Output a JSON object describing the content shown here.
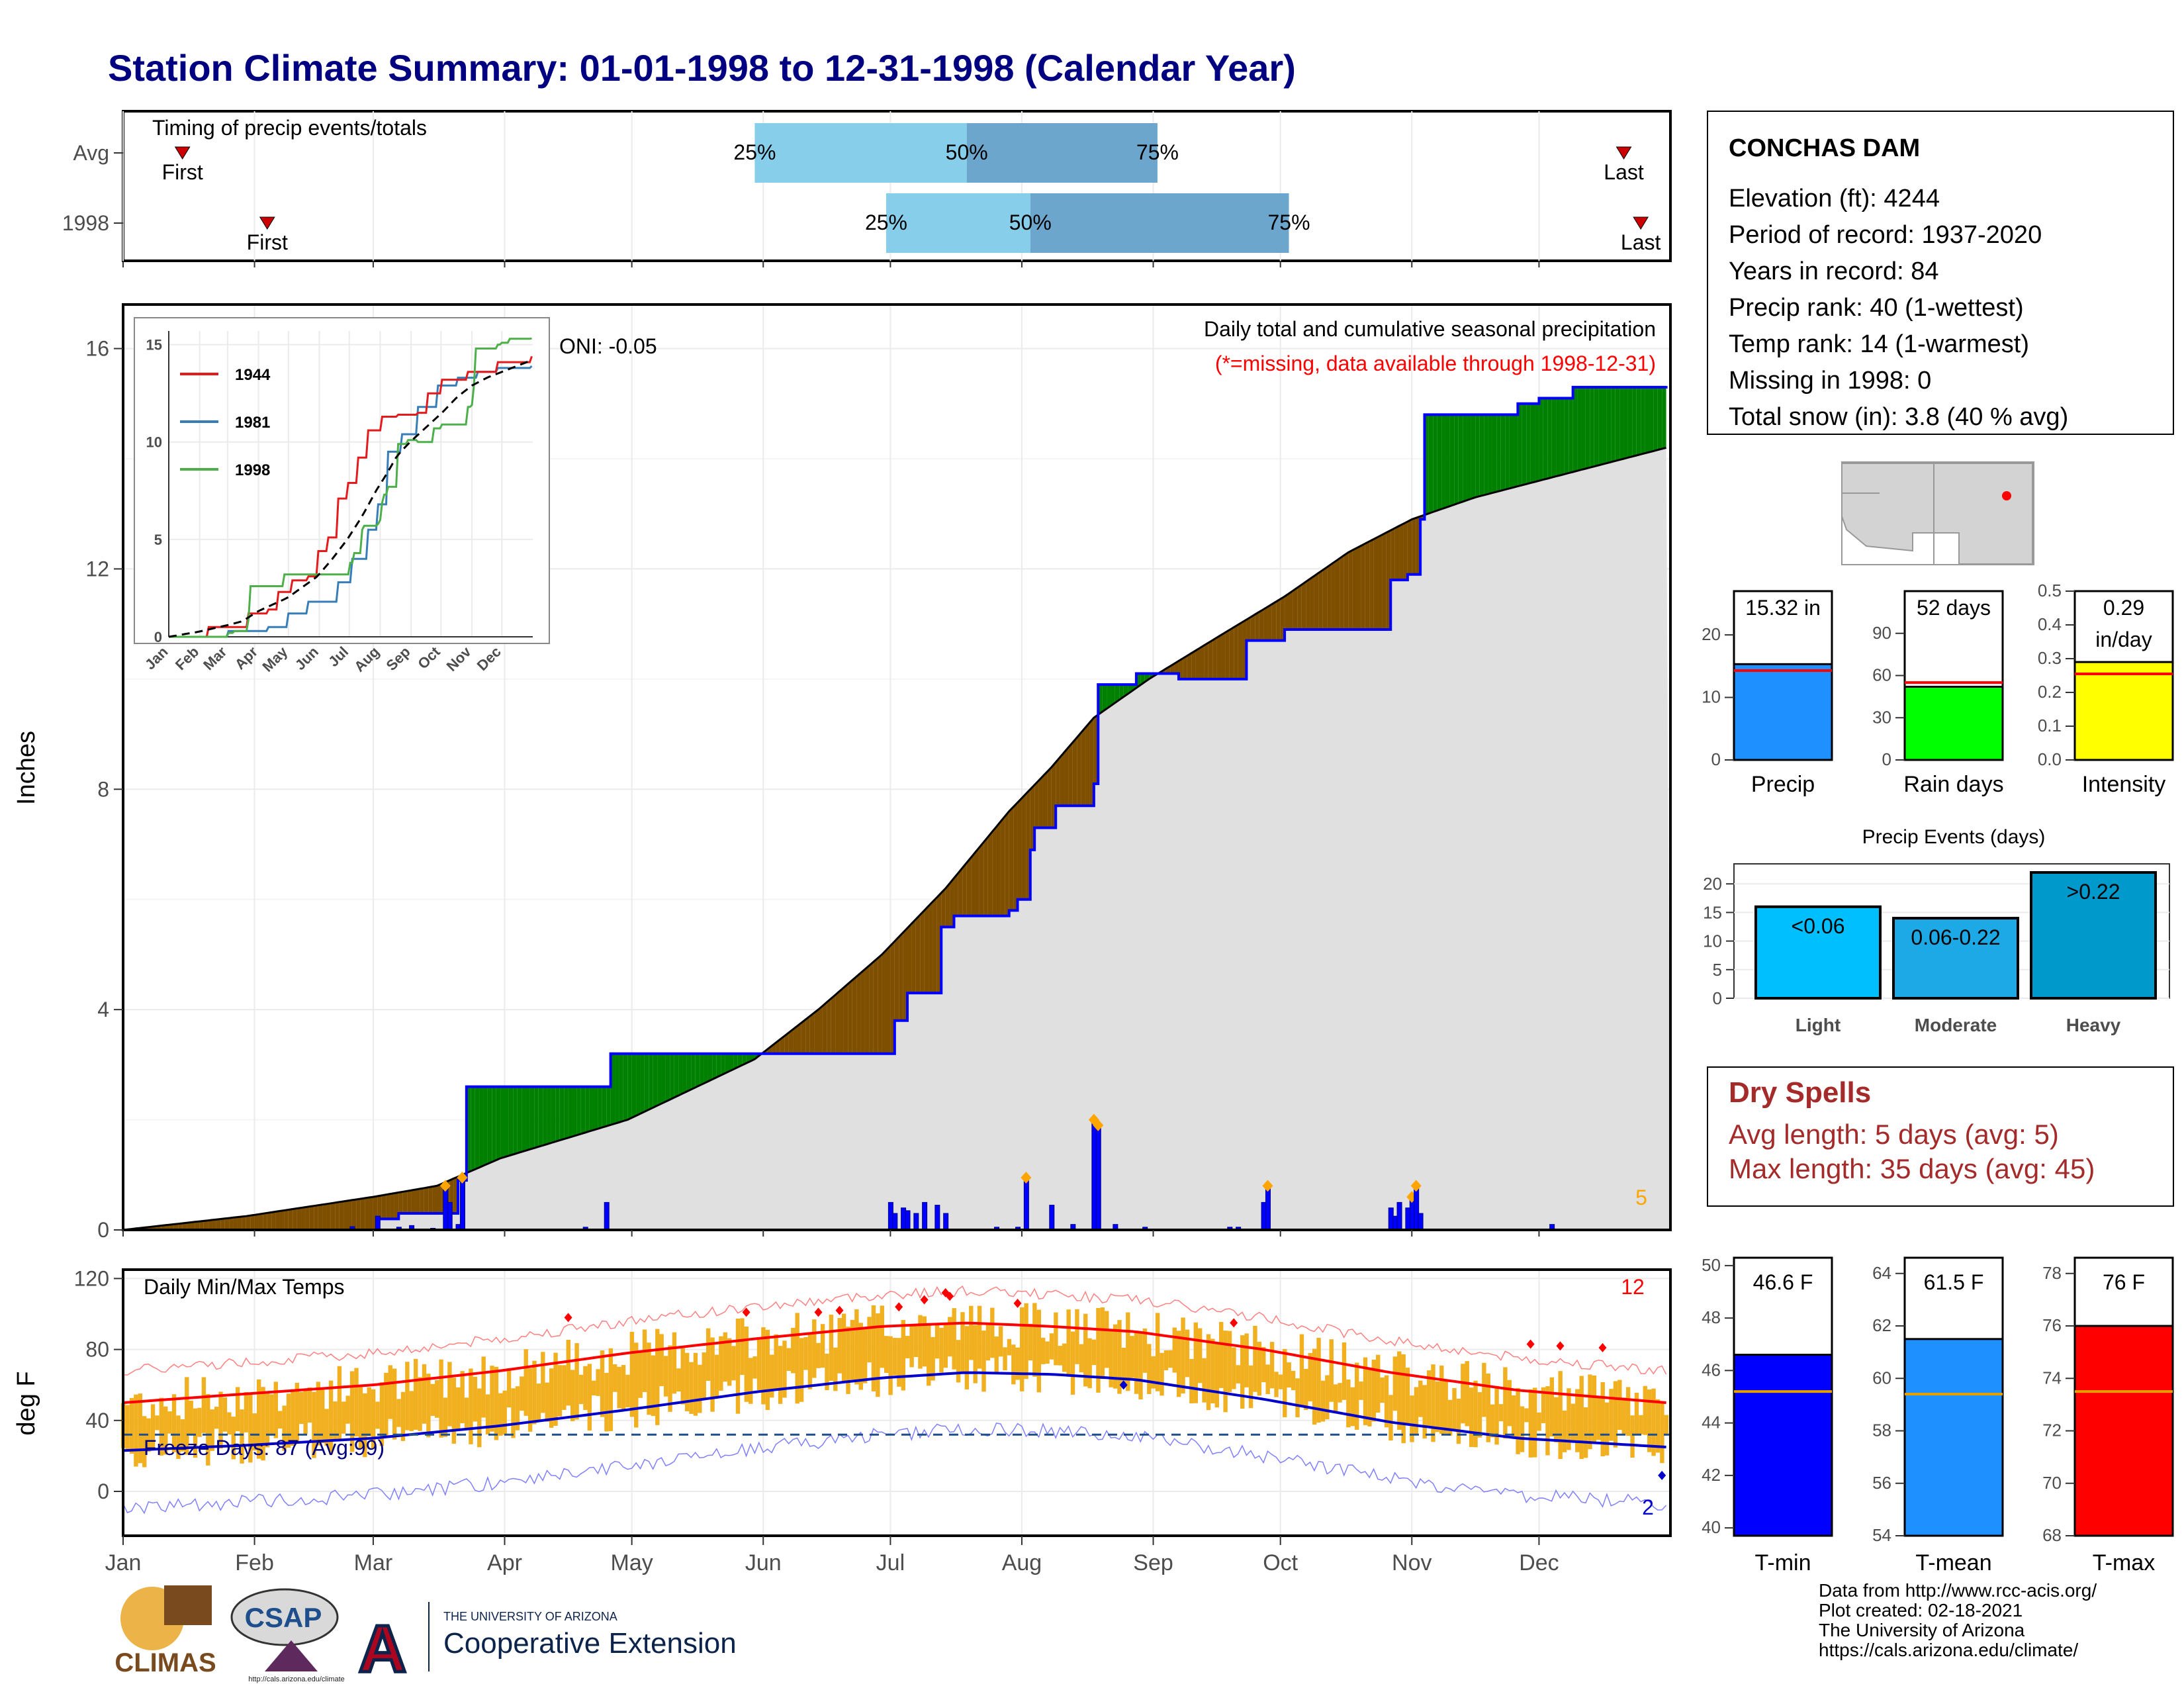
{
  "title": "Station Climate Summary: 01-01-1998 to 12-31-1998 (Calendar Year)",
  "colors": {
    "title": "#000080",
    "quartile_light": "#87CEEB",
    "quartile_dark": "#6CA6CD",
    "surplus": "#008000",
    "deficit": "#7F4F00",
    "normal_area": "#E0E0E0",
    "cumulative_line": "#0000FF",
    "daily_bars": "#0000FF",
    "temp_range": "#F0B020",
    "tmax_avg": "#FF0000",
    "tmin_avg": "#0000CD",
    "dry_spells": "#A52A2A",
    "missing_note": "#FF0000"
  },
  "timing": {
    "panel_title": "Timing of precip events/totals",
    "rows": [
      {
        "label": "Avg",
        "first_label": "First",
        "last_label": "Last",
        "first_doy": 15,
        "last_doy": 355,
        "q25": 150,
        "q50": 200,
        "q75": 245,
        "q25_label": "25%",
        "q50_label": "50%",
        "q75_label": "75%"
      },
      {
        "label": "1998",
        "first_label": "First",
        "last_label": "Last",
        "first_doy": 35,
        "last_doy": 359,
        "q25": 181,
        "q50": 215,
        "q75": 276,
        "q25_label": "25%",
        "q50_label": "50%",
        "q75_label": "75%"
      }
    ]
  },
  "precip_panel": {
    "ylabel": "Inches",
    "yticks": [
      "0",
      "4",
      "8",
      "12",
      "16"
    ],
    "oni": "ONI: -0.05",
    "caption": "Daily total and cumulative seasonal precipitation",
    "missing_note": "(*=missing, data available through 1998-12-31)",
    "missing_count": "5"
  },
  "inset": {
    "yticks": [
      "0",
      "5",
      "10",
      "15"
    ],
    "xticks": [
      "Jan",
      "Feb",
      "Mar",
      "Apr",
      "May",
      "Jun",
      "Jul",
      "Aug",
      "Sep",
      "Oct",
      "Nov",
      "Dec"
    ],
    "legend": [
      {
        "name": "1944",
        "color": "#E41A1C"
      },
      {
        "name": "1981",
        "color": "#377EB8"
      },
      {
        "name": "1998",
        "color": "#4DAF4A"
      }
    ]
  },
  "temp_panel": {
    "ylabel": "deg F",
    "title": "Daily Min/Max Temps",
    "freeze_label": "Freeze Days: 87 (Avg:99)",
    "yticks": [
      "0",
      "40",
      "80",
      "120"
    ],
    "count_max": "12",
    "count_min": "2"
  },
  "x_months": [
    "Jan",
    "Feb",
    "Mar",
    "Apr",
    "May",
    "Jun",
    "Jul",
    "Aug",
    "Sep",
    "Oct",
    "Nov",
    "Dec"
  ],
  "station": {
    "name": "CONCHAS DAM",
    "lines": [
      "Elevation (ft): 4244",
      "Period of record: 1937-2020",
      "Years in record: 84",
      "Precip rank: 40 (1-wettest)",
      "Temp rank: 14 (1-warmest)",
      "Missing in 1998: 0",
      "Total snow (in): 3.8 (40 % avg)"
    ]
  },
  "summary_bars": [
    {
      "label": "Precip",
      "value_label": "15.32 in",
      "value": 15.32,
      "avg": 14.3,
      "ymax": 27,
      "ticks": [
        "0",
        "10",
        "20"
      ],
      "tickvals": [
        0,
        10,
        20
      ],
      "color": "#1E90FF"
    },
    {
      "label": "Rain days",
      "value_label": "52 days",
      "value": 52,
      "avg": 55,
      "ymax": 120,
      "ticks": [
        "0",
        "30",
        "60",
        "90"
      ],
      "tickvals": [
        0,
        30,
        60,
        90
      ],
      "color": "#00FF00"
    },
    {
      "label": "Intensity",
      "value_label": "0.29",
      "value_label2": "in/day",
      "value": 0.29,
      "avg": 0.255,
      "ymax": 0.5,
      "ticks": [
        "0.0",
        "0.1",
        "0.2",
        "0.3",
        "0.4",
        "0.5"
      ],
      "tickvals": [
        0,
        0.1,
        0.2,
        0.3,
        0.4,
        0.5
      ],
      "color": "#FFFF00"
    }
  ],
  "precip_events": {
    "title": "Precip Events (days)",
    "yticks": [
      "0",
      "5",
      "10",
      "15",
      "20"
    ],
    "bars": [
      {
        "category": "Light",
        "label": "<0.06",
        "value": 16,
        "color": "#00BFFF"
      },
      {
        "category": "Moderate",
        "label": "0.06-0.22",
        "value": 14,
        "color": "#1CA9E6"
      },
      {
        "category": "Heavy",
        "label": ">0.22",
        "value": 22,
        "color": "#0099CC"
      }
    ]
  },
  "dry_spells": {
    "title": "Dry Spells",
    "avg_line": "Avg length: 5 days (avg: 5)",
    "max_line": "Max length: 35 days (avg: 45)"
  },
  "temp_bars": [
    {
      "label": "T-min",
      "value_label": "46.6 F",
      "value": 46.6,
      "avg": 45.2,
      "ymin": 39.7,
      "ymax": 50.3,
      "ticks": [
        "40",
        "42",
        "44",
        "46",
        "48",
        "50"
      ],
      "tickvals": [
        40,
        42,
        44,
        46,
        48,
        50
      ],
      "color": "#0000FF"
    },
    {
      "label": "T-mean",
      "value_label": "61.5 F",
      "value": 61.5,
      "avg": 59.4,
      "ymin": 54,
      "ymax": 64.6,
      "ticks": [
        "54",
        "56",
        "58",
        "60",
        "62",
        "64"
      ],
      "tickvals": [
        54,
        56,
        58,
        60,
        62,
        64
      ],
      "color": "#1E90FF"
    },
    {
      "label": "T-max",
      "value_label": "76 F",
      "value": 76.0,
      "avg": 73.5,
      "ymin": 68,
      "ymax": 78.6,
      "ticks": [
        "68",
        "70",
        "72",
        "74",
        "76",
        "78"
      ],
      "tickvals": [
        68,
        70,
        72,
        74,
        76,
        78
      ],
      "color": "#FF0000"
    }
  ],
  "logos": {
    "climas": "CLIMAS",
    "csap": "CSAP",
    "csap_url": "http://cals.arizona.edu/climate",
    "ua_small": "THE UNIVERSITY OF ARIZONA",
    "ua_big": "Cooperative Extension"
  },
  "credits": [
    "Data from http://www.rcc-acis.org/",
    "Plot created: 02-18-2021",
    "The University of Arizona",
    "https://cals.arizona.edu/climate/"
  ],
  "chart_data": {
    "type": "area",
    "title": "Station Climate Summary: 01-01-1998 to 12-31-1998 (Calendar Year)",
    "ylabel": "Inches",
    "ylim": [
      0,
      16.8
    ],
    "cumulative_1998": [
      [
        1,
        0
      ],
      [
        50,
        0
      ],
      [
        61,
        0.2
      ],
      [
        66,
        0.3
      ],
      [
        75,
        0.3
      ],
      [
        80,
        0.9
      ],
      [
        82,
        2.6
      ],
      [
        115,
        2.6
      ],
      [
        116,
        3.2
      ],
      [
        152,
        3.2
      ],
      [
        182,
        3.2
      ],
      [
        183,
        3.8
      ],
      [
        186,
        4.3
      ],
      [
        194,
        5.5
      ],
      [
        197,
        5.7
      ],
      [
        210,
        5.8
      ],
      [
        212,
        6.0
      ],
      [
        215,
        6.9
      ],
      [
        216,
        7.3
      ],
      [
        221,
        7.7
      ],
      [
        230,
        8.1
      ],
      [
        231,
        9.9
      ],
      [
        240,
        10.1
      ],
      [
        243,
        10.1
      ],
      [
        250,
        10.0
      ],
      [
        260,
        10.0
      ],
      [
        266,
        10.7
      ],
      [
        275,
        10.9
      ],
      [
        300,
        11.8
      ],
      [
        304,
        11.9
      ],
      [
        307,
        12.9
      ],
      [
        308,
        14.8
      ],
      [
        330,
        15.0
      ],
      [
        335,
        15.1
      ],
      [
        343,
        15.3
      ],
      [
        365,
        15.32
      ]
    ],
    "cumulative_avg": [
      [
        1,
        0
      ],
      [
        30,
        0.25
      ],
      [
        60,
        0.6
      ],
      [
        75,
        0.8
      ],
      [
        90,
        1.3
      ],
      [
        120,
        2.0
      ],
      [
        150,
        3.1
      ],
      [
        165,
        4.0
      ],
      [
        180,
        5.0
      ],
      [
        195,
        6.2
      ],
      [
        210,
        7.6
      ],
      [
        220,
        8.4
      ],
      [
        230,
        9.3
      ],
      [
        243,
        10.0
      ],
      [
        260,
        10.8
      ],
      [
        275,
        11.5
      ],
      [
        290,
        12.3
      ],
      [
        305,
        12.9
      ],
      [
        320,
        13.3
      ],
      [
        335,
        13.6
      ],
      [
        350,
        13.9
      ],
      [
        365,
        14.2
      ]
    ],
    "daily_precip": [
      [
        55,
        0.06
      ],
      [
        61,
        0.25
      ],
      [
        66,
        0.05
      ],
      [
        69,
        0.08
      ],
      [
        74,
        0.03
      ],
      [
        77,
        0.8
      ],
      [
        78,
        0.5
      ],
      [
        80,
        0.1
      ],
      [
        81,
        0.95
      ],
      [
        110,
        0.05
      ],
      [
        115,
        0.5
      ],
      [
        182,
        0.5
      ],
      [
        183,
        0.3
      ],
      [
        185,
        0.4
      ],
      [
        186,
        0.35
      ],
      [
        188,
        0.3
      ],
      [
        190,
        0.5
      ],
      [
        193,
        0.45
      ],
      [
        195,
        0.3
      ],
      [
        207,
        0.05
      ],
      [
        212,
        0.05
      ],
      [
        214,
        0.95
      ],
      [
        220,
        0.45
      ],
      [
        225,
        0.1
      ],
      [
        230,
        2.0
      ],
      [
        231,
        1.9
      ],
      [
        235,
        0.1
      ],
      [
        242,
        0.05
      ],
      [
        262,
        0.05
      ],
      [
        264,
        0.05
      ],
      [
        270,
        0.5
      ],
      [
        271,
        0.8
      ],
      [
        300,
        0.4
      ],
      [
        301,
        0.25
      ],
      [
        302,
        0.5
      ],
      [
        304,
        0.4
      ],
      [
        305,
        0.6
      ],
      [
        306,
        0.8
      ],
      [
        307,
        0.3
      ],
      [
        338,
        0.1
      ]
    ],
    "temp_panel": {
      "ylim": [
        -25,
        125
      ],
      "freeze_line": 32,
      "avg_tmax": [
        [
          1,
          50
        ],
        [
          30,
          55
        ],
        [
          60,
          60
        ],
        [
          90,
          68
        ],
        [
          120,
          78
        ],
        [
          150,
          86
        ],
        [
          180,
          93
        ],
        [
          200,
          95
        ],
        [
          220,
          93
        ],
        [
          240,
          90
        ],
        [
          270,
          80
        ],
        [
          300,
          67
        ],
        [
          330,
          57
        ],
        [
          365,
          50
        ]
      ],
      "avg_tmin": [
        [
          1,
          23
        ],
        [
          30,
          26
        ],
        [
          60,
          30
        ],
        [
          90,
          37
        ],
        [
          120,
          46
        ],
        [
          150,
          56
        ],
        [
          180,
          64
        ],
        [
          200,
          67
        ],
        [
          220,
          66
        ],
        [
          240,
          63
        ],
        [
          270,
          52
        ],
        [
          300,
          39
        ],
        [
          330,
          30
        ],
        [
          365,
          25
        ]
      ]
    }
  }
}
